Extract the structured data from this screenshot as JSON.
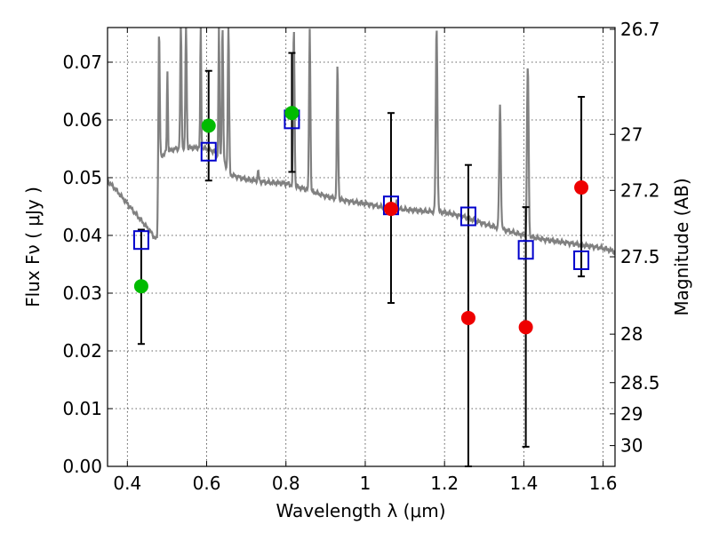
{
  "chart_data": {
    "type": "scatter",
    "xlabel": "Wavelength  λ (μm)",
    "ylabel": "Flux  Fν  ( μJy )",
    "ylabel_right": "Magnitude (AB)",
    "xlim": [
      0.35,
      1.63
    ],
    "ylim": [
      0.0,
      0.076
    ],
    "x_ticks": [
      0.4,
      0.6,
      0.8,
      1.0,
      1.2,
      1.4,
      1.6
    ],
    "x_tick_labels": [
      "0.4",
      "0.6",
      "0.8",
      "1",
      "1.2",
      "1.4",
      "1.6"
    ],
    "y_ticks": [
      0.0,
      0.01,
      0.02,
      0.03,
      0.04,
      0.05,
      0.06,
      0.07
    ],
    "y_tick_labels": [
      "0.00",
      "0.01",
      "0.02",
      "0.03",
      "0.04",
      "0.05",
      "0.06",
      "0.07"
    ],
    "right_ticks": [
      {
        "label": "26.7",
        "flux": 0.0757
      },
      {
        "label": "27",
        "flux": 0.0575
      },
      {
        "label": "27.2",
        "flux": 0.0478
      },
      {
        "label": "27.5",
        "flux": 0.0363
      },
      {
        "label": "28",
        "flux": 0.0229
      },
      {
        "label": "28.5",
        "flux": 0.0145
      },
      {
        "label": "29",
        "flux": 0.0091
      },
      {
        "label": "30",
        "flux": 0.0036
      }
    ],
    "grid": true,
    "series": [
      {
        "name": "model spectrum",
        "kind": "line",
        "color": "#808080",
        "x": [
          0.35,
          0.37,
          0.4,
          0.43,
          0.46,
          0.47,
          0.475,
          0.48,
          0.49,
          0.5,
          0.52,
          0.54,
          0.56,
          0.58,
          0.6,
          0.62,
          0.64,
          0.66,
          0.7,
          0.75,
          0.8,
          0.85,
          0.9,
          0.95,
          1.0,
          1.05,
          1.1,
          1.15,
          1.2,
          1.25,
          1.3,
          1.35,
          1.4,
          1.45,
          1.5,
          1.55,
          1.6,
          1.63
        ],
        "y": [
          0.0495,
          0.048,
          0.0455,
          0.043,
          0.0405,
          0.0395,
          0.0393,
          0.053,
          0.054,
          0.0545,
          0.055,
          0.055,
          0.0552,
          0.0552,
          0.055,
          0.0545,
          0.053,
          0.0505,
          0.0497,
          0.0492,
          0.049,
          0.048,
          0.0468,
          0.046,
          0.0455,
          0.0448,
          0.0445,
          0.0442,
          0.044,
          0.0432,
          0.042,
          0.041,
          0.04,
          0.0393,
          0.0388,
          0.0383,
          0.0378,
          0.0372
        ],
        "lines": [
          {
            "x": 0.48,
            "peak": 0.0762,
            "w": 0.004
          },
          {
            "x": 0.501,
            "peak": 0.0685,
            "w": 0.003
          },
          {
            "x": 0.535,
            "peak": 0.0762,
            "w": 0.004
          },
          {
            "x": 0.548,
            "peak": 0.0762,
            "w": 0.004
          },
          {
            "x": 0.585,
            "peak": 0.0762,
            "w": 0.003
          },
          {
            "x": 0.631,
            "peak": 0.0762,
            "w": 0.003
          },
          {
            "x": 0.64,
            "peak": 0.0762,
            "w": 0.004
          },
          {
            "x": 0.655,
            "peak": 0.0762,
            "w": 0.004
          },
          {
            "x": 0.73,
            "peak": 0.051,
            "w": 0.004
          },
          {
            "x": 0.82,
            "peak": 0.0762,
            "w": 0.004
          },
          {
            "x": 0.86,
            "peak": 0.0762,
            "w": 0.004
          },
          {
            "x": 0.93,
            "peak": 0.0695,
            "w": 0.004
          },
          {
            "x": 1.08,
            "peak": 0.046,
            "w": 0.004
          },
          {
            "x": 1.18,
            "peak": 0.0762,
            "w": 0.005
          },
          {
            "x": 1.34,
            "peak": 0.0625,
            "w": 0.005
          },
          {
            "x": 1.41,
            "peak": 0.0695,
            "w": 0.005
          }
        ]
      },
      {
        "name": "blue squares (model photometry)",
        "kind": "open-square",
        "color": "#0000cc",
        "x": [
          0.435,
          0.605,
          0.815,
          1.065,
          1.26,
          1.405,
          1.545
        ],
        "y": [
          0.0392,
          0.0545,
          0.0601,
          0.0452,
          0.0433,
          0.0375,
          0.0357
        ]
      },
      {
        "name": "green points (detections)",
        "kind": "filled-circle",
        "color": "#00bb00",
        "x": [
          0.435,
          0.605,
          0.815
        ],
        "y": [
          0.0312,
          0.059,
          0.0612
        ]
      },
      {
        "name": "red points (low-significance)",
        "kind": "filled-circle",
        "color": "#ee0000",
        "x": [
          1.065,
          1.26,
          1.405,
          1.545
        ],
        "y": [
          0.0446,
          0.0257,
          0.0241,
          0.0483
        ]
      }
    ],
    "error_bars": [
      {
        "x": 0.435,
        "low": 0.0212,
        "high": 0.041
      },
      {
        "x": 0.605,
        "low": 0.0495,
        "high": 0.0685
      },
      {
        "x": 0.815,
        "low": 0.051,
        "high": 0.0716
      },
      {
        "x": 1.065,
        "low": 0.0283,
        "high": 0.0612
      },
      {
        "x": 1.26,
        "low": 0.0,
        "high": 0.0522
      },
      {
        "x": 1.405,
        "low": 0.0034,
        "high": 0.0449
      },
      {
        "x": 1.545,
        "low": 0.0329,
        "high": 0.064
      }
    ]
  }
}
